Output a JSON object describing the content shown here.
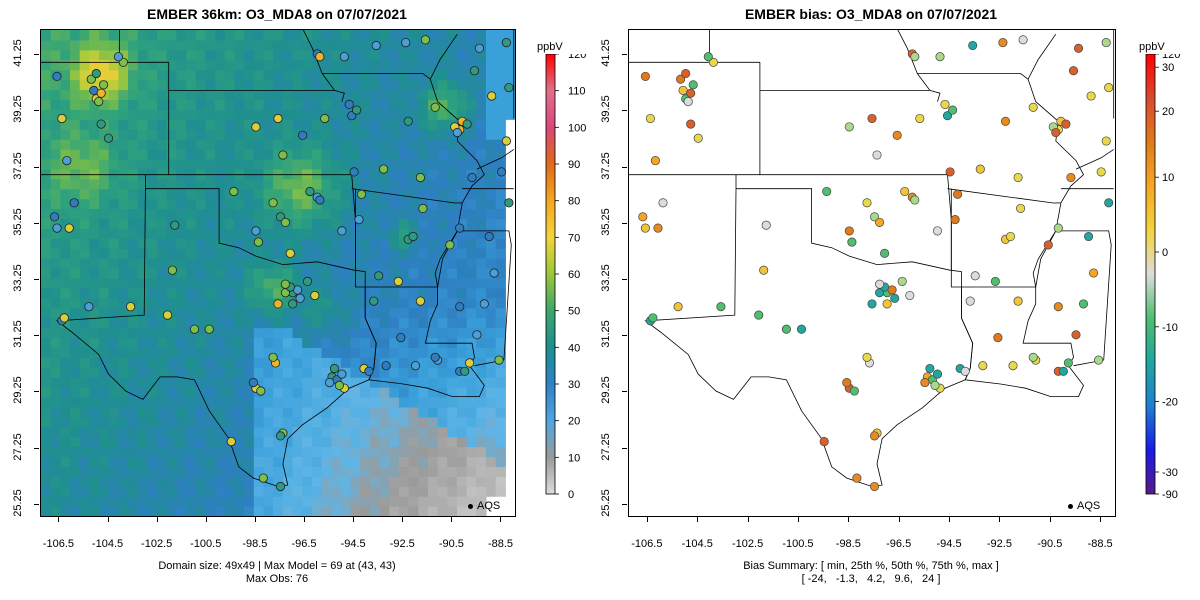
{
  "panels": [
    {
      "title": "EMBER 36km: O3_MDA8 on 07/07/2021",
      "colorbar_unit": "ppbV",
      "colorbar_ticks": [
        "0",
        "10",
        "20",
        "30",
        "40",
        "50",
        "60",
        "70",
        "80",
        "90",
        "100",
        "110",
        "120"
      ],
      "caption_lines": [
        "Domain size: 49x49 | Max Model = 69 at (43, 43)",
        "Max Obs: 76"
      ],
      "legend_label": "AQS"
    },
    {
      "title": "EMBER bias: O3_MDA8 on 07/07/2021",
      "colorbar_unit": "ppbV",
      "colorbar_ticks": [
        "-90",
        "-30",
        "-20",
        "-10",
        "0",
        "10",
        "20",
        "30",
        "120"
      ],
      "caption_lines": [
        "Bias Summary: [ min, 25th %, 50th %, 75th %, max ]",
        "[ -24,   -1.3,   4.2,   9.6,   24 ]"
      ],
      "legend_label": "AQS"
    }
  ],
  "axes": {
    "lon_ticks": [
      "-106.5",
      "-104.5",
      "-102.5",
      "-100.5",
      "-98.5",
      "-96.5",
      "-94.5",
      "-92.5",
      "-90.5",
      "-88.5"
    ],
    "lat_ticks": [
      "25.25",
      "27.25",
      "29.25",
      "31.25",
      "33.25",
      "35.25",
      "37.25",
      "39.25",
      "41.25"
    ]
  },
  "colors": {
    "concentration_scale": [
      "#dcdcdc",
      "#9a9a9a",
      "#4fa6dd",
      "#2d82c4",
      "#1e8f8f",
      "#3ea66b",
      "#9cc63a",
      "#f2d43a",
      "#f5a623",
      "#e06a1a",
      "#d9487a",
      "#e0708a",
      "#ff0000"
    ],
    "bias_scale": [
      "#5a1a8a",
      "#1a1ae6",
      "#1e7fd0",
      "#1fa7a0",
      "#4fbe6f",
      "#dcdcdc",
      "#f2d43a",
      "#f5a623",
      "#e07a1a",
      "#d94a30",
      "#ff0000"
    ]
  }
}
